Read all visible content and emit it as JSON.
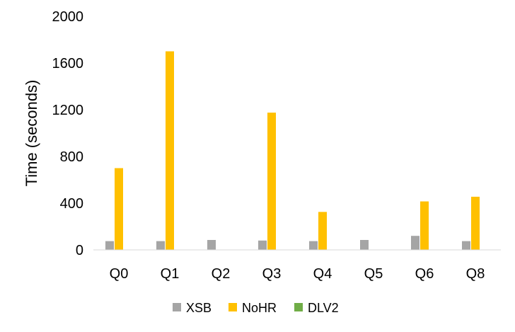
{
  "chart_data": {
    "type": "bar",
    "ylabel": "Time (seconds)",
    "ylim": [
      0,
      2000
    ],
    "yticks": [
      0,
      400,
      800,
      1200,
      1600,
      2000
    ],
    "categories": [
      "Q0",
      "Q1",
      "Q2",
      "Q3",
      "Q4",
      "Q5",
      "Q6",
      "Q8"
    ],
    "series": [
      {
        "name": "XSB",
        "color": "#A5A5A5",
        "values": [
          75,
          75,
          85,
          80,
          75,
          85,
          120,
          75
        ]
      },
      {
        "name": "NoHR",
        "color": "#FFC000",
        "values": [
          700,
          1700,
          null,
          1175,
          325,
          null,
          415,
          455
        ]
      },
      {
        "name": "DLV2",
        "color": "#70AD47",
        "values": [
          null,
          null,
          null,
          null,
          null,
          null,
          null,
          null
        ]
      }
    ],
    "legend_position": "bottom",
    "grid": false
  }
}
